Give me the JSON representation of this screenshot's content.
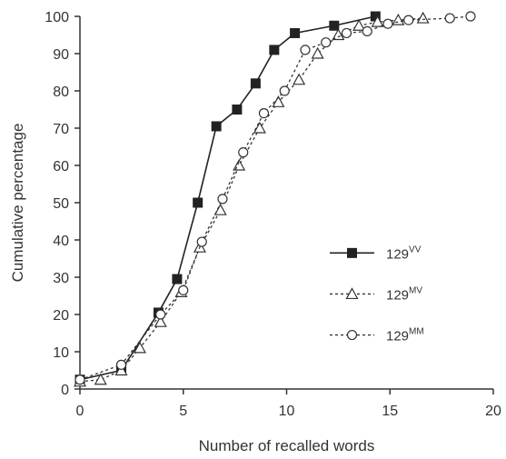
{
  "chart_data": {
    "type": "line",
    "title": "",
    "xlabel": "Number of recalled words",
    "ylabel": "Cumulative percentage",
    "xlim": [
      0,
      20
    ],
    "ylim": [
      0,
      100
    ],
    "xticks": [
      0,
      5,
      10,
      15,
      20
    ],
    "yticks": [
      0,
      10,
      20,
      30,
      40,
      50,
      60,
      70,
      80,
      90,
      100
    ],
    "grid": false,
    "legend_position": "center-right",
    "series": [
      {
        "name": "129",
        "sup": "VV",
        "marker": "filled-square",
        "line": "solid",
        "color": "#222222",
        "x": [
          0,
          2,
          3.8,
          4.7,
          5.7,
          6.6,
          7.6,
          8.5,
          9.4,
          10.4,
          12.3,
          14.3
        ],
        "y": [
          2.5,
          5,
          20.5,
          29.5,
          50,
          70.5,
          75,
          82,
          91,
          95.5,
          97.5,
          100
        ]
      },
      {
        "name": "129",
        "sup": "MV",
        "marker": "open-triangle",
        "line": "dashed",
        "color": "#333333",
        "x": [
          0,
          1,
          2,
          2.9,
          3.9,
          4.9,
          5.8,
          6.8,
          7.7,
          8.7,
          9.6,
          10.6,
          11.5,
          12.5,
          13.5,
          14.4,
          15.4,
          16.6
        ],
        "y": [
          2,
          2.5,
          5,
          11,
          18,
          26,
          38,
          48,
          60,
          70,
          77,
          83,
          90,
          95,
          97.5,
          98.5,
          99,
          99.5
        ]
      },
      {
        "name": "129",
        "sup": "MM",
        "marker": "open-circle",
        "line": "dashed",
        "color": "#333333",
        "x": [
          0,
          2,
          3.9,
          5,
          5.9,
          6.9,
          7.9,
          8.9,
          9.9,
          10.9,
          11.9,
          12.9,
          13.9,
          14.9,
          15.9,
          17.9,
          18.9
        ],
        "y": [
          2.5,
          6.5,
          20,
          26.5,
          39.5,
          51,
          63.5,
          74,
          80,
          91,
          93,
          95.5,
          96,
          98,
          99,
          99.5,
          100
        ]
      }
    ]
  }
}
